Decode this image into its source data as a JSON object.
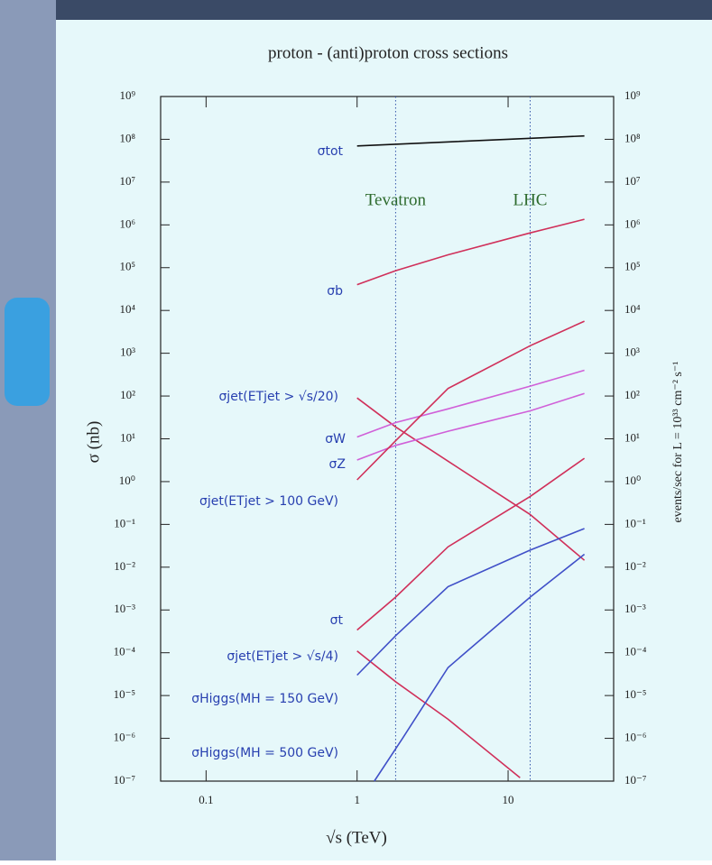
{
  "chart_data": {
    "type": "line",
    "title": "proton - (anti)proton cross sections",
    "xlabel": "√s  (TeV)",
    "ylabel": "σ  (nb)",
    "y2label": "events/sec  for L = 10³³ cm⁻² s⁻¹",
    "xscale": "log",
    "yscale": "log",
    "xlim": [
      0.05,
      50
    ],
    "xticks": [
      0.1,
      1,
      10
    ],
    "ylim": [
      1e-07,
      1000000000.0
    ],
    "yticks": [
      {
        "value": 1e-07,
        "label": "10⁻⁷"
      },
      {
        "value": 1e-06,
        "label": "10⁻⁶"
      },
      {
        "value": 1e-05,
        "label": "10⁻⁵"
      },
      {
        "value": 0.0001,
        "label": "10⁻⁴"
      },
      {
        "value": 0.001,
        "label": "10⁻³"
      },
      {
        "value": 0.01,
        "label": "10⁻²"
      },
      {
        "value": 0.1,
        "label": "10⁻¹"
      },
      {
        "value": 1,
        "label": "10⁰"
      },
      {
        "value": 10,
        "label": "10¹"
      },
      {
        "value": 100,
        "label": "10²"
      },
      {
        "value": 1000,
        "label": "10³"
      },
      {
        "value": 10000.0,
        "label": "10⁴"
      },
      {
        "value": 100000.0,
        "label": "10⁵"
      },
      {
        "value": 1000000.0,
        "label": "10⁶"
      },
      {
        "value": 10000000.0,
        "label": "10⁷"
      },
      {
        "value": 100000000.0,
        "label": "10⁸"
      },
      {
        "value": 1000000000.0,
        "label": "10⁹"
      }
    ],
    "y2lim": [
      1e-07,
      1000000000.0
    ],
    "y2ticks": [
      {
        "value": 1e-07,
        "label": "10⁻⁷"
      },
      {
        "value": 1e-06,
        "label": "10⁻⁶"
      },
      {
        "value": 1e-05,
        "label": "10⁻⁵"
      },
      {
        "value": 0.0001,
        "label": "10⁻⁴"
      },
      {
        "value": 0.001,
        "label": "10⁻³"
      },
      {
        "value": 0.01,
        "label": "10⁻²"
      },
      {
        "value": 0.1,
        "label": "10⁻¹"
      },
      {
        "value": 1,
        "label": "10⁰"
      },
      {
        "value": 10,
        "label": "10¹"
      },
      {
        "value": 100,
        "label": "10²"
      },
      {
        "value": 1000,
        "label": "10³"
      },
      {
        "value": 10000.0,
        "label": "10⁴"
      },
      {
        "value": 100000.0,
        "label": "10⁵"
      },
      {
        "value": 1000000.0,
        "label": "10⁶"
      },
      {
        "value": 10000000.0,
        "label": "10⁷"
      },
      {
        "value": 100000000.0,
        "label": "10⁸"
      },
      {
        "value": 1000000000.0,
        "label": "10⁹"
      }
    ],
    "annotations": [
      {
        "text": "Tevatron",
        "x": 1.8,
        "color": "#2e6b2e"
      },
      {
        "text": "LHC",
        "x": 14,
        "color": "#2e6b2e"
      }
    ],
    "series": [
      {
        "name": "σtot",
        "color": "#111111",
        "x": [
          1,
          10,
          32
        ],
        "values": [
          70000000.0,
          100000000.0,
          120000000.0
        ]
      },
      {
        "name": "σb",
        "color": "#d0305a",
        "x": [
          1,
          1.8,
          4,
          14,
          32
        ],
        "values": [
          40000.0,
          85000.0,
          200000.0,
          650000.0,
          1350000.0
        ]
      },
      {
        "name": "σjet(ETjet > √s/20)",
        "color": "#d0305a",
        "x": [
          1,
          1.8,
          4,
          14,
          32
        ],
        "values": [
          90,
          19,
          3,
          0.17,
          0.0145
        ]
      },
      {
        "name": "σW",
        "color": "#d060d8",
        "x": [
          1,
          1.8,
          4,
          14,
          32
        ],
        "values": [
          11,
          24,
          50,
          170,
          400
        ]
      },
      {
        "name": "σZ",
        "color": "#d060d8",
        "x": [
          1,
          1.8,
          4,
          14,
          32
        ],
        "values": [
          3.2,
          7,
          15,
          45,
          115
        ]
      },
      {
        "name": "σjet(ETjet > 100 GeV)",
        "color": "#d0305a",
        "x": [
          1,
          1.8,
          4,
          14,
          32
        ],
        "values": [
          1.1,
          9,
          150,
          1500,
          5600
        ]
      },
      {
        "name": "σt",
        "color": "#d0305a",
        "x": [
          1,
          1.8,
          4,
          14,
          32
        ],
        "values": [
          0.00034,
          0.002,
          0.03,
          0.45,
          3.5
        ]
      },
      {
        "name": "σjet(ETjet > √s/4)",
        "color": "#d0305a",
        "x": [
          1,
          1.8,
          4,
          12
        ],
        "values": [
          0.00011,
          2.1e-05,
          2.8e-06,
          1.2e-07
        ]
      },
      {
        "name": "σHiggs(MH = 150 GeV)",
        "color": "#4050c8",
        "x": [
          1,
          1.8,
          4,
          14,
          32
        ],
        "values": [
          3e-05,
          0.00025,
          0.0035,
          0.025,
          0.08
        ]
      },
      {
        "name": "σHiggs(MH = 500 GeV)",
        "color": "#4050c8",
        "x": [
          1.3,
          2,
          4,
          14,
          32
        ],
        "values": [
          1e-07,
          1e-06,
          4.5e-05,
          0.002,
          0.02
        ]
      }
    ]
  }
}
